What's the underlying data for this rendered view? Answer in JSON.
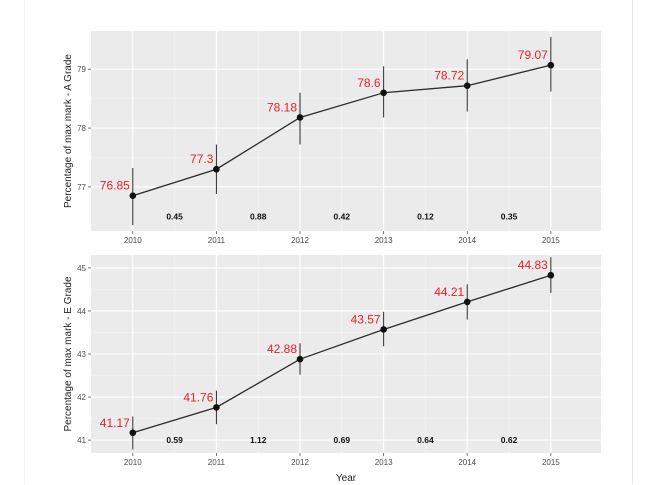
{
  "chart_data": [
    {
      "type": "line",
      "ylabel": "Percentage of max mark - A Grade",
      "xlabel": "",
      "x": [
        2010,
        2011,
        2012,
        2013,
        2014,
        2015
      ],
      "y": [
        76.85,
        77.3,
        78.18,
        78.6,
        78.72,
        79.07
      ],
      "y_low": [
        76.35,
        76.88,
        77.72,
        78.18,
        78.28,
        78.62
      ],
      "y_high": [
        77.32,
        77.72,
        78.6,
        79.05,
        79.17,
        79.55
      ],
      "data_labels": [
        "76.85",
        "77.3",
        "78.18",
        "78.6",
        "78.72",
        "79.07"
      ],
      "annotations": [
        "0.45",
        "0.88",
        "0.42",
        "0.12",
        "0.35"
      ],
      "annotation_y": 76.5,
      "ylim": [
        76.25,
        79.65
      ],
      "xlim": [
        2009.5,
        2015.6
      ],
      "yticks": [
        77,
        78,
        79
      ],
      "xticks": [
        2010,
        2011,
        2012,
        2013,
        2014,
        2015
      ],
      "grid": true
    },
    {
      "type": "line",
      "ylabel": "Percentage of max mark - E Grade",
      "xlabel": "Year",
      "x": [
        2010,
        2011,
        2012,
        2013,
        2014,
        2015
      ],
      "y": [
        41.17,
        41.76,
        42.88,
        43.57,
        44.21,
        44.83
      ],
      "y_low": [
        40.78,
        41.37,
        42.52,
        43.18,
        43.8,
        44.42
      ],
      "y_high": [
        41.55,
        42.15,
        43.25,
        43.98,
        44.62,
        45.25
      ],
      "data_labels": [
        "41.17",
        "41.76",
        "42.88",
        "43.57",
        "44.21",
        "44.83"
      ],
      "annotations": [
        "0.59",
        "1.12",
        "0.69",
        "0.64",
        "0.62"
      ],
      "annotation_y": 41,
      "ylim": [
        40.7,
        45.3
      ],
      "xlim": [
        2009.5,
        2015.6
      ],
      "yticks": [
        41,
        42,
        43,
        44,
        45
      ],
      "xticks": [
        2010,
        2011,
        2012,
        2013,
        2014,
        2015
      ],
      "grid": true
    }
  ],
  "colors": {
    "panel_bg": "#ebebeb",
    "grid_major": "#ffffff",
    "grid_minor": "#f4f4f4",
    "line": "#2b2b2b",
    "point": "#111111",
    "data_label": "#e8202a"
  }
}
